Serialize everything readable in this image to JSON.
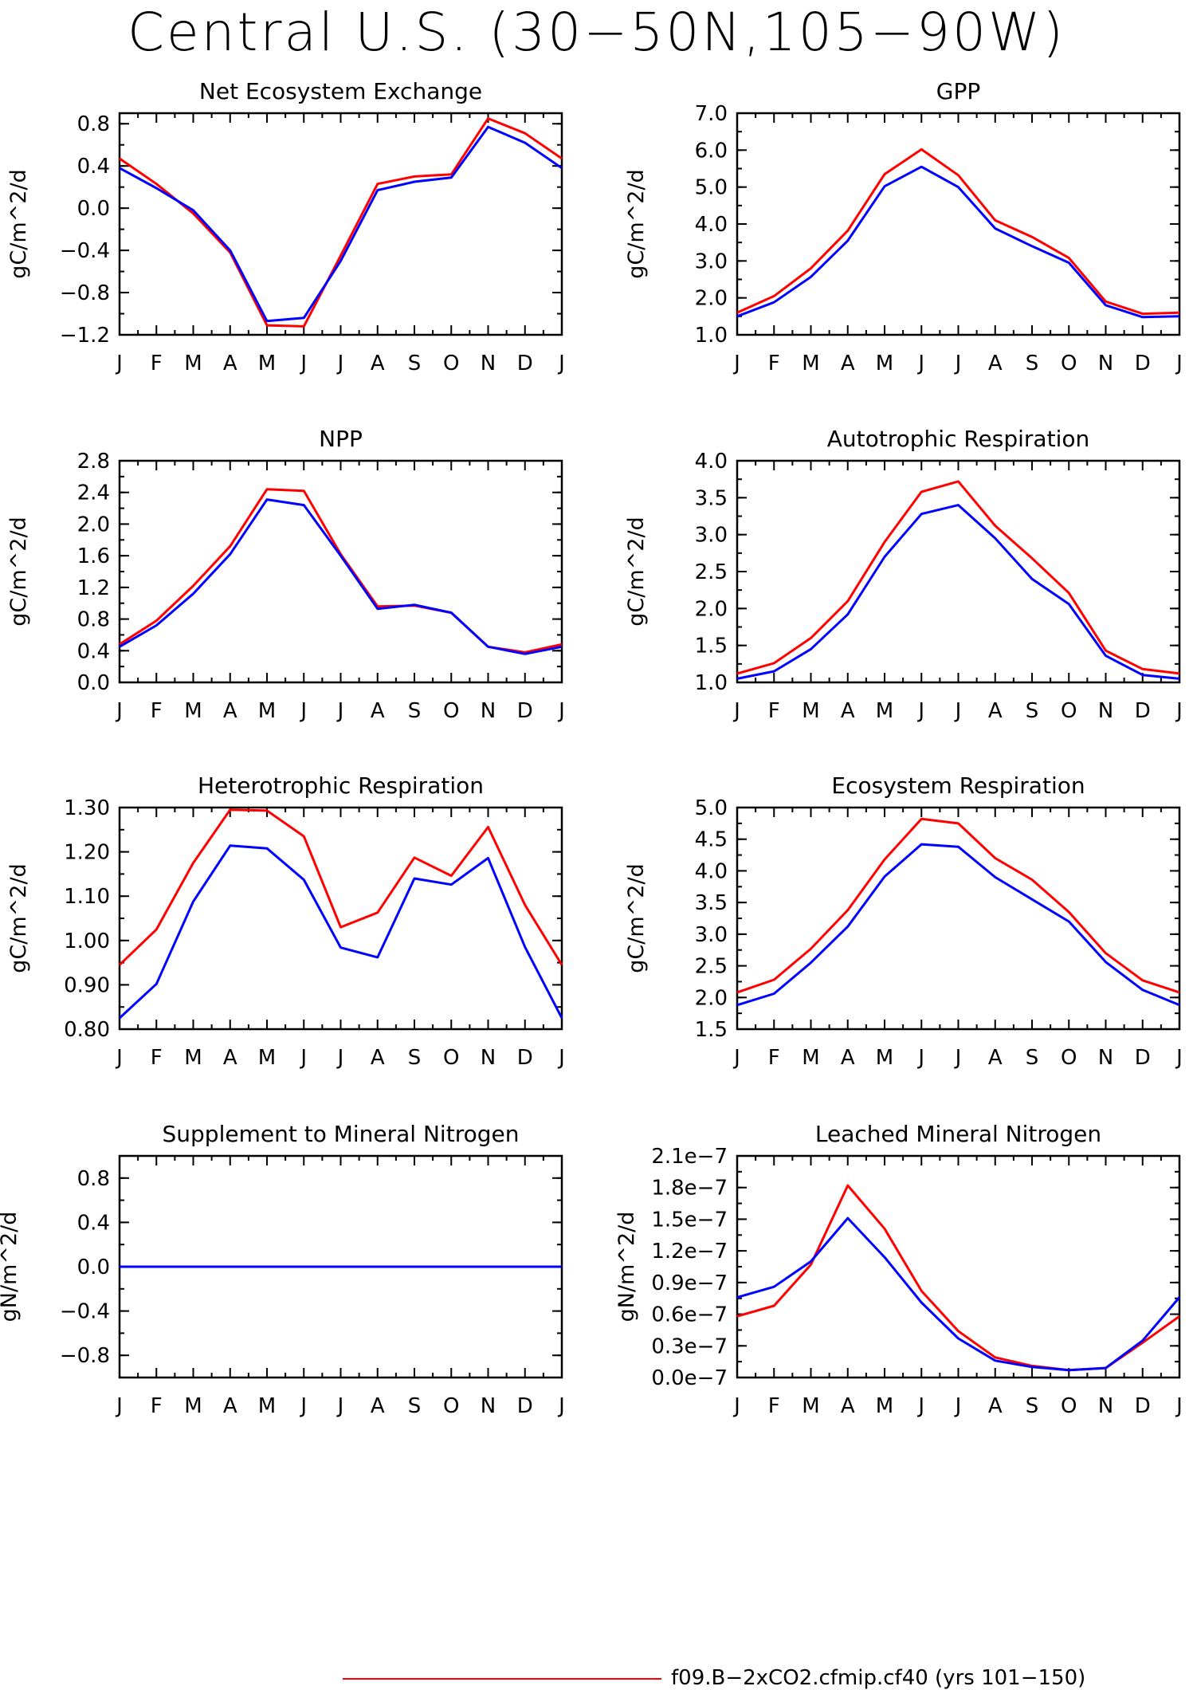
{
  "title": "Central U.S. (30−50N,105−90W)",
  "legend": {
    "label": "f09.B−2xCO2.cfmip.cf40 (yrs 101−150)",
    "color": "#ff0000"
  },
  "months": [
    "J",
    "F",
    "M",
    "A",
    "M",
    "J",
    "J",
    "A",
    "S",
    "O",
    "N",
    "D",
    "J"
  ],
  "colors": {
    "red": "#ff0000",
    "blue": "#0000ff"
  },
  "chart_data": [
    {
      "type": "line",
      "title": "Net Ecosystem Exchange",
      "ylabel": "gC/m^2/d",
      "ylim": [
        -1.2,
        0.9
      ],
      "yticks": [
        -1.2,
        -0.8,
        -0.4,
        0.0,
        0.4,
        0.8
      ],
      "yticklabels": [
        "−1.2",
        "−0.8",
        "−0.4",
        "0.0",
        "0.4",
        "0.8"
      ],
      "series": [
        {
          "color": "#ff0000",
          "values": [
            0.47,
            0.23,
            -0.05,
            -0.42,
            -1.11,
            -1.12,
            -0.45,
            0.23,
            0.3,
            0.32,
            0.85,
            0.71,
            0.47
          ]
        },
        {
          "color": "#0000ff",
          "values": [
            0.38,
            0.19,
            -0.02,
            -0.4,
            -1.07,
            -1.04,
            -0.5,
            0.17,
            0.25,
            0.29,
            0.77,
            0.62,
            0.38
          ]
        }
      ]
    },
    {
      "type": "line",
      "title": "GPP",
      "ylabel": "gC/m^2/d",
      "ylim": [
        1.0,
        7.0
      ],
      "yticks": [
        1.0,
        2.0,
        3.0,
        4.0,
        5.0,
        6.0,
        7.0
      ],
      "yticklabels": [
        "1.0",
        "2.0",
        "3.0",
        "4.0",
        "5.0",
        "6.0",
        "7.0"
      ],
      "series": [
        {
          "color": "#ff0000",
          "values": [
            1.6,
            2.05,
            2.8,
            3.82,
            5.35,
            6.02,
            5.32,
            4.1,
            3.65,
            3.08,
            1.9,
            1.57,
            1.6
          ]
        },
        {
          "color": "#0000ff",
          "values": [
            1.5,
            1.88,
            2.57,
            3.55,
            5.02,
            5.55,
            5.0,
            3.88,
            3.4,
            2.95,
            1.8,
            1.48,
            1.5
          ]
        }
      ]
    },
    {
      "type": "line",
      "title": "NPP",
      "ylabel": "gC/m^2/d",
      "ylim": [
        0.0,
        2.8
      ],
      "yticks": [
        0.0,
        0.4,
        0.8,
        1.2,
        1.6,
        2.0,
        2.4,
        2.8
      ],
      "yticklabels": [
        "0.0",
        "0.4",
        "0.8",
        "1.2",
        "1.6",
        "2.0",
        "2.4",
        "2.8"
      ],
      "series": [
        {
          "color": "#ff0000",
          "values": [
            0.48,
            0.78,
            1.22,
            1.72,
            2.44,
            2.42,
            1.62,
            0.96,
            0.97,
            0.88,
            0.45,
            0.38,
            0.48
          ]
        },
        {
          "color": "#0000ff",
          "values": [
            0.45,
            0.72,
            1.12,
            1.62,
            2.31,
            2.24,
            1.6,
            0.93,
            0.98,
            0.88,
            0.45,
            0.36,
            0.45
          ]
        }
      ]
    },
    {
      "type": "line",
      "title": "Autotrophic Respiration",
      "ylabel": "gC/m^2/d",
      "ylim": [
        1.0,
        4.0
      ],
      "yticks": [
        1.0,
        1.5,
        2.0,
        2.5,
        3.0,
        3.5,
        4.0
      ],
      "yticklabels": [
        "1.0",
        "1.5",
        "2.0",
        "2.5",
        "3.0",
        "3.5",
        "4.0"
      ],
      "series": [
        {
          "color": "#ff0000",
          "values": [
            1.12,
            1.26,
            1.6,
            2.1,
            2.9,
            3.58,
            3.72,
            3.12,
            2.68,
            2.21,
            1.43,
            1.18,
            1.12
          ]
        },
        {
          "color": "#0000ff",
          "values": [
            1.05,
            1.15,
            1.45,
            1.92,
            2.7,
            3.28,
            3.4,
            2.95,
            2.4,
            2.06,
            1.36,
            1.1,
            1.05
          ]
        }
      ]
    },
    {
      "type": "line",
      "title": "Heterotrophic Respiration",
      "ylabel": "gC/m^2/d",
      "ylim": [
        0.8,
        1.3
      ],
      "yticks": [
        0.8,
        0.9,
        1.0,
        1.1,
        1.2,
        1.3
      ],
      "yticklabels": [
        "0.80",
        "0.90",
        "1.00",
        "1.10",
        "1.20",
        "1.30"
      ],
      "series": [
        {
          "color": "#ff0000",
          "values": [
            0.945,
            1.025,
            1.175,
            1.295,
            1.293,
            1.235,
            1.03,
            1.063,
            1.187,
            1.146,
            1.256,
            1.08,
            0.945
          ]
        },
        {
          "color": "#0000ff",
          "values": [
            0.825,
            0.902,
            1.088,
            1.214,
            1.208,
            1.137,
            0.984,
            0.962,
            1.14,
            1.126,
            1.186,
            0.985,
            0.825
          ]
        }
      ]
    },
    {
      "type": "line",
      "title": "Ecosystem Respiration",
      "ylabel": "gC/m^2/d",
      "ylim": [
        1.5,
        5.0
      ],
      "yticks": [
        1.5,
        2.0,
        2.5,
        3.0,
        3.5,
        4.0,
        4.5,
        5.0
      ],
      "yticklabels": [
        "1.5",
        "2.0",
        "2.5",
        "3.0",
        "3.5",
        "4.0",
        "4.5",
        "5.0"
      ],
      "series": [
        {
          "color": "#ff0000",
          "values": [
            2.08,
            2.28,
            2.77,
            3.38,
            4.18,
            4.82,
            4.75,
            4.2,
            3.86,
            3.35,
            2.7,
            2.27,
            2.08
          ]
        },
        {
          "color": "#0000ff",
          "values": [
            1.88,
            2.06,
            2.55,
            3.12,
            3.91,
            4.42,
            4.38,
            3.9,
            3.55,
            3.2,
            2.56,
            2.12,
            1.88
          ]
        }
      ]
    },
    {
      "type": "line",
      "title": "Supplement to Mineral Nitrogen",
      "ylabel": "gN/m^2/d",
      "ylim": [
        -1.0,
        1.0
      ],
      "yticks": [
        -0.8,
        -0.4,
        0.0,
        0.4,
        0.8
      ],
      "yticklabels": [
        "−0.8",
        "−0.4",
        "0.0",
        "0.4",
        "0.8"
      ],
      "series": [
        {
          "color": "#ff0000",
          "values": [
            0,
            0,
            0,
            0,
            0,
            0,
            0,
            0,
            0,
            0,
            0,
            0,
            0
          ]
        },
        {
          "color": "#0000ff",
          "values": [
            0,
            0,
            0,
            0,
            0,
            0,
            0,
            0,
            0,
            0,
            0,
            0,
            0
          ]
        }
      ]
    },
    {
      "type": "line",
      "title": "Leached Mineral Nitrogen",
      "ylabel": "gN/m^2/d",
      "ylim": [
        0.0,
        0.21
      ],
      "yticks": [
        0.0,
        0.03,
        0.06,
        0.09,
        0.12,
        0.15,
        0.18,
        0.21
      ],
      "yticklabels": [
        "0.0e−7",
        "0.3e−7",
        "0.6e−7",
        "0.9e−7",
        "1.2e−7",
        "1.5e−7",
        "1.8e−7",
        "2.1e−7"
      ],
      "series": [
        {
          "color": "#ff0000",
          "values": [
            0.058,
            0.068,
            0.107,
            0.182,
            0.141,
            0.082,
            0.044,
            0.019,
            0.011,
            0.007,
            0.009,
            0.033,
            0.058
          ]
        },
        {
          "color": "#0000ff",
          "values": [
            0.076,
            0.086,
            0.11,
            0.151,
            0.114,
            0.071,
            0.037,
            0.016,
            0.01,
            0.007,
            0.009,
            0.035,
            0.076
          ]
        }
      ]
    }
  ]
}
